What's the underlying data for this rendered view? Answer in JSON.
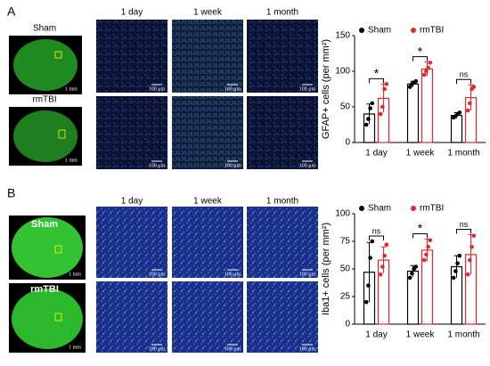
{
  "panels": [
    {
      "label": "A",
      "rows": [
        "Sham",
        "rmTBI"
      ],
      "columns": [
        "1 day",
        "1 week",
        "1 month"
      ],
      "scale_micro": "100 μm",
      "scale_brain": "1 mm"
    },
    {
      "label": "B",
      "rows": [
        "Sham",
        "rmTBI"
      ],
      "columns": [
        "1 day",
        "1 week",
        "1 month"
      ],
      "scale_micro": "100 μm",
      "scale_brain": "1 mm"
    }
  ],
  "chart_data": [
    {
      "type": "bar",
      "ylabel": "GFAP+ cells (per mm²)",
      "categories": [
        "1 day",
        "1 week",
        "1 month"
      ],
      "series": [
        {
          "name": "Sham",
          "color": "#000000",
          "values": [
            40,
            82,
            38
          ],
          "errors": [
            14,
            4,
            4
          ],
          "points": [
            [
              25,
              33,
              48,
              55
            ],
            [
              78,
              82,
              84,
              86
            ],
            [
              35,
              37,
              40,
              42
            ]
          ]
        },
        {
          "name": "rmTBI",
          "color": "#e8262a",
          "values": [
            62,
            103,
            63
          ],
          "errors": [
            20,
            10,
            18
          ],
          "points": [
            [
              40,
              50,
              75,
              82
            ],
            [
              95,
              100,
              105,
              112
            ],
            [
              45,
              55,
              75,
              78
            ]
          ]
        }
      ],
      "significance": [
        "*",
        "*",
        "ns"
      ],
      "ylim": [
        0,
        150
      ],
      "yticks": [
        0,
        50,
        100,
        150
      ],
      "legend": "top"
    },
    {
      "type": "bar",
      "ylabel": "Iba1+ cells (per mm²)",
      "categories": [
        "1 day",
        "1 week",
        "1 month"
      ],
      "series": [
        {
          "name": "Sham",
          "color": "#000000",
          "values": [
            47,
            48,
            52
          ],
          "errors": [
            27,
            5,
            10
          ],
          "points": [
            [
              20,
              35,
              60,
              75
            ],
            [
              42,
              46,
              50,
              52
            ],
            [
              42,
              48,
              55,
              62
            ]
          ]
        },
        {
          "name": "rmTBI",
          "color": "#e8262a",
          "values": [
            58,
            67,
            63
          ],
          "errors": [
            12,
            10,
            18
          ],
          "points": [
            [
              45,
              52,
              62,
              72
            ],
            [
              58,
              63,
              70,
              76
            ],
            [
              45,
              58,
              70,
              80
            ]
          ]
        }
      ],
      "significance": [
        "ns",
        "*",
        "ns"
      ],
      "ylim": [
        0,
        100
      ],
      "yticks": [
        0,
        25,
        50,
        75,
        100
      ],
      "legend": "top"
    }
  ]
}
